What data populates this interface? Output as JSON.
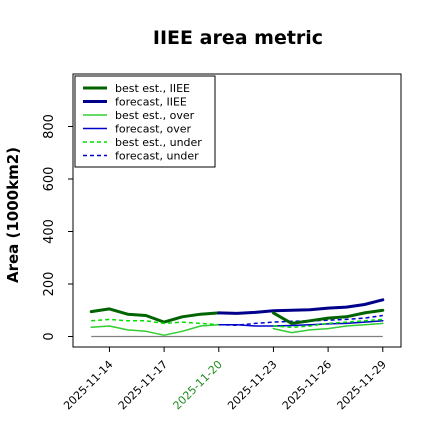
{
  "chart_data": {
    "type": "line",
    "title": "IIEE area metric",
    "xlabel": "",
    "ylabel": "Area (1000km2)",
    "ylim": [
      -40,
      1000
    ],
    "yticks": [
      0,
      200,
      400,
      600,
      800
    ],
    "x_range": [
      "2025-11-12",
      "2025-11-30"
    ],
    "xticks": [
      "2025-11-14",
      "2025-11-17",
      "2025-11-20",
      "2025-11-23",
      "2025-11-26",
      "2025-11-29"
    ],
    "highlight_tick": "2025-11-20",
    "highlight_color": "#228B22",
    "hline": 0,
    "legend": "upper-left",
    "series": [
      {
        "name": "best est., IIEE",
        "color": "#006400",
        "style": "solid",
        "width": 3,
        "x": [
          "2025-11-13",
          "2025-11-14",
          "2025-11-15",
          "2025-11-16",
          "2025-11-17",
          "2025-11-18",
          "2025-11-19",
          "2025-11-20"
        ],
        "y": [
          95,
          105,
          85,
          80,
          55,
          75,
          85,
          90
        ]
      },
      {
        "name": "forecast, IIEE",
        "color": "#00008B",
        "style": "solid",
        "width": 3,
        "x": [
          "2025-11-20",
          "2025-11-21",
          "2025-11-22",
          "2025-11-23",
          "2025-11-24",
          "2025-11-25",
          "2025-11-26",
          "2025-11-27",
          "2025-11-28",
          "2025-11-29"
        ],
        "y": [
          90,
          88,
          92,
          98,
          100,
          102,
          108,
          112,
          122,
          140
        ]
      },
      {
        "name": "best est., over",
        "color": "#32CD32",
        "style": "solid",
        "width": 1.5,
        "x": [
          "2025-11-13",
          "2025-11-14",
          "2025-11-15",
          "2025-11-16",
          "2025-11-17",
          "2025-11-18",
          "2025-11-19",
          "2025-11-20"
        ],
        "y": [
          35,
          40,
          25,
          20,
          5,
          20,
          40,
          45
        ]
      },
      {
        "name": "forecast, over",
        "color": "#0000CD",
        "style": "solid",
        "width": 1.5,
        "x": [
          "2025-11-20",
          "2025-11-21",
          "2025-11-22",
          "2025-11-23",
          "2025-11-24",
          "2025-11-25",
          "2025-11-26",
          "2025-11-27",
          "2025-11-28",
          "2025-11-29"
        ],
        "y": [
          45,
          45,
          40,
          40,
          42,
          45,
          48,
          50,
          55,
          60
        ]
      },
      {
        "name": "best est., under",
        "color": "#00E000",
        "style": "dashed",
        "width": 1.5,
        "x": [
          "2025-11-13",
          "2025-11-14",
          "2025-11-15",
          "2025-11-16",
          "2025-11-17",
          "2025-11-18",
          "2025-11-19",
          "2025-11-20"
        ],
        "y": [
          60,
          65,
          60,
          60,
          50,
          55,
          50,
          45
        ]
      },
      {
        "name": "forecast, under",
        "color": "#0000CD",
        "style": "dashed",
        "width": 1.5,
        "x": [
          "2025-11-20",
          "2025-11-21",
          "2025-11-22",
          "2025-11-23",
          "2025-11-24",
          "2025-11-25",
          "2025-11-26",
          "2025-11-27",
          "2025-11-28",
          "2025-11-29"
        ],
        "y": [
          45,
          43,
          50,
          55,
          58,
          60,
          62,
          65,
          70,
          80
        ]
      },
      {
        "name": "",
        "color": "#006400",
        "style": "solid",
        "width": 3,
        "x": [
          "2025-11-23",
          "2025-11-24",
          "2025-11-25",
          "2025-11-26",
          "2025-11-27",
          "2025-11-28",
          "2025-11-29"
        ],
        "y": [
          90,
          50,
          60,
          70,
          75,
          90,
          100
        ]
      },
      {
        "name": "",
        "color": "#32CD32",
        "style": "solid",
        "width": 1.5,
        "x": [
          "2025-11-23",
          "2025-11-24",
          "2025-11-25",
          "2025-11-26",
          "2025-11-27",
          "2025-11-28",
          "2025-11-29"
        ],
        "y": [
          30,
          15,
          25,
          30,
          40,
          45,
          50
        ]
      },
      {
        "name": "",
        "color": "#00E000",
        "style": "dashed",
        "width": 1.5,
        "x": [
          "2025-11-23",
          "2025-11-24",
          "2025-11-25",
          "2025-11-26",
          "2025-11-27",
          "2025-11-28",
          "2025-11-29"
        ],
        "y": [
          40,
          35,
          40,
          50,
          55,
          60,
          65
        ]
      }
    ]
  }
}
